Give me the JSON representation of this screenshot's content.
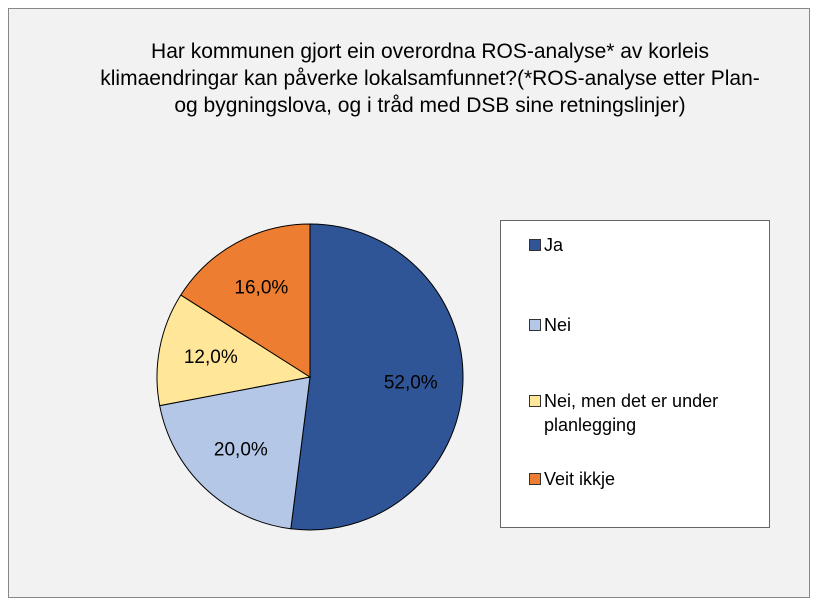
{
  "chart_data": {
    "type": "pie",
    "title": "Har kommunen gjort ein overordna ROS-analyse* av korleis klimaendringar kan påverke lokalsamfunnet?(*ROS-analyse etter Plan- og bygningslova, og i tråd med DSB sine retningslinjer)",
    "categories": [
      "Ja",
      "Nei",
      "Nei, men det er under planlegging",
      "Veit ikkje"
    ],
    "values": [
      52,
      20,
      12,
      16
    ],
    "value_labels": [
      "52,0%",
      "20,0%",
      "12,0%",
      "16,0%"
    ],
    "colors": [
      "#2f5597",
      "#b4c7e7",
      "#ffe699",
      "#ed7d31"
    ],
    "legend": "right"
  }
}
